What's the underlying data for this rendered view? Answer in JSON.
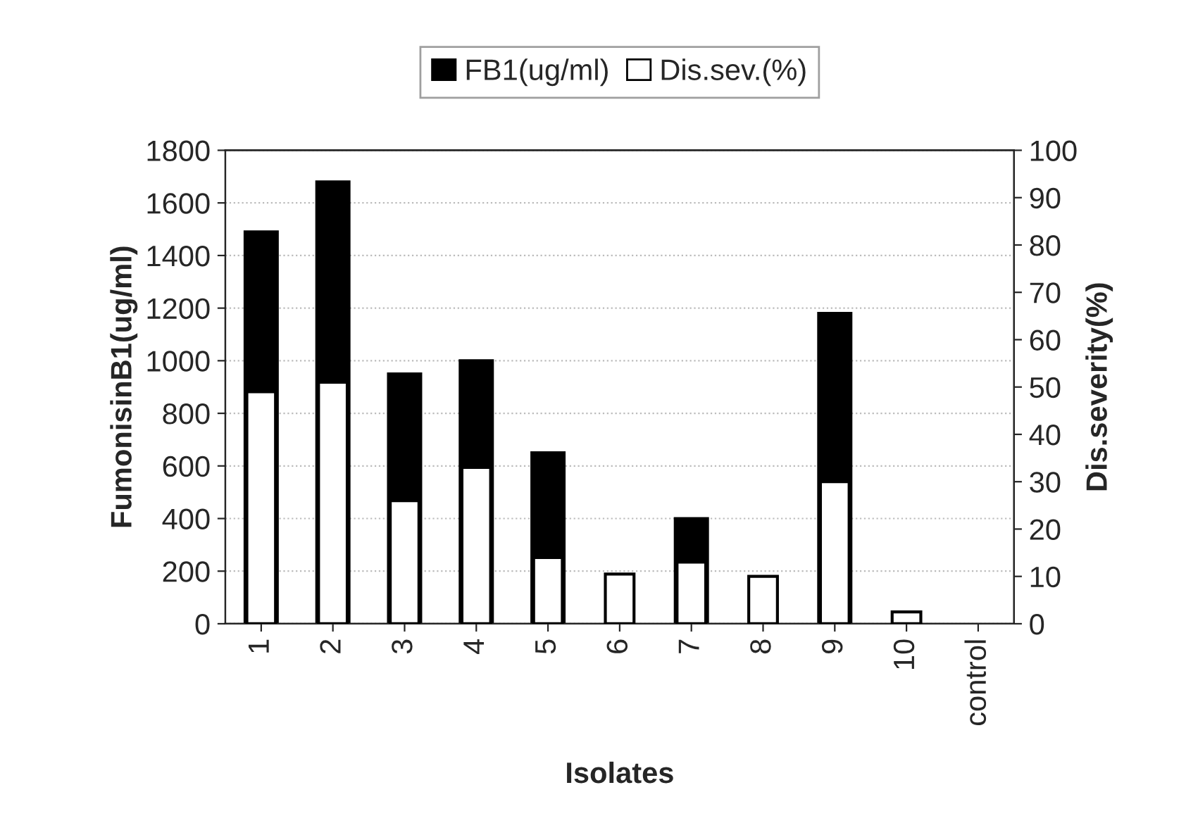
{
  "chart_data": {
    "type": "bar",
    "categories": [
      "1",
      "2",
      "3",
      "4",
      "5",
      "6",
      "7",
      "8",
      "9",
      "10",
      "control"
    ],
    "xlabel": "Isolates",
    "ylabel": "FumonisinB1(ug/ml)",
    "y2label": "Dis.severity(%)",
    "series": [
      {
        "name": "FB1(ug/ml)",
        "color": "#000000",
        "values": [
          1490,
          1680,
          950,
          1000,
          650,
          0,
          400,
          0,
          1180,
          0,
          0
        ]
      },
      {
        "name": "Dis.sev.(%)",
        "color": "#ffffff",
        "axis": "y2",
        "values": [
          49,
          51,
          26,
          33,
          14,
          10.5,
          13,
          10,
          30,
          2.5,
          0
        ]
      }
    ],
    "ylim": [
      0,
      1800
    ],
    "yticks": [
      0,
      200,
      400,
      600,
      800,
      1000,
      1200,
      1400,
      1600,
      1800
    ],
    "y2lim": [
      0,
      100
    ],
    "y2ticks": [
      0,
      10,
      20,
      30,
      40,
      50,
      60,
      70,
      80,
      90,
      100
    ],
    "grid": "y",
    "legend": "top"
  }
}
